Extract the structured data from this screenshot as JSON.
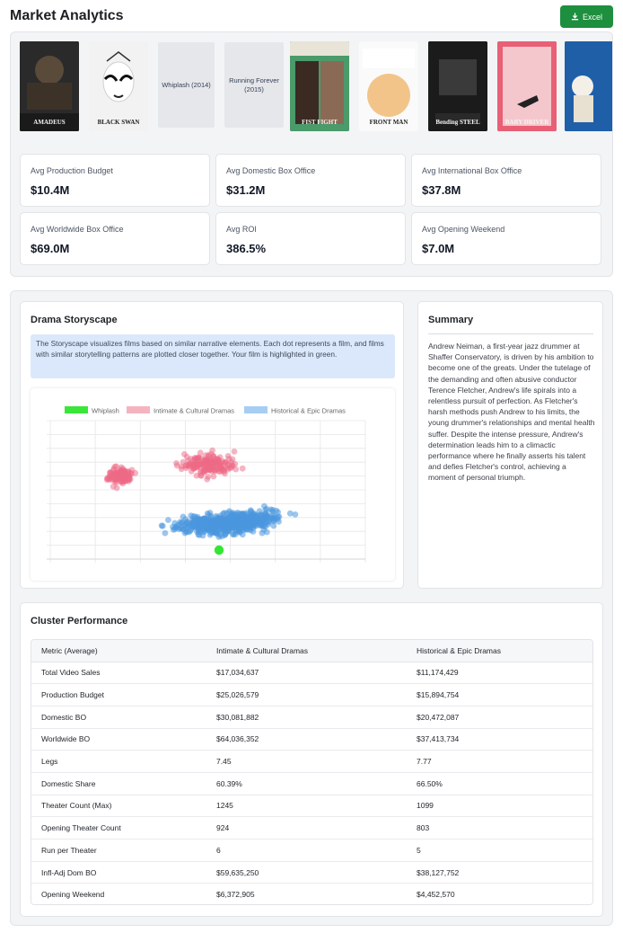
{
  "header": {
    "title": "Market Analytics",
    "excel_label": "Excel"
  },
  "posters": [
    {
      "type": "image",
      "caption": "AMADEUS",
      "name": "poster-amadeus",
      "bg": "#2a2a2a"
    },
    {
      "type": "image",
      "caption": "BLACK SWAN",
      "name": "poster-black-swan",
      "bg": "#efefef"
    },
    {
      "type": "placeholder",
      "title": "Whiplash (2014)"
    },
    {
      "type": "placeholder",
      "title": "Running Forever (2015)"
    },
    {
      "type": "image",
      "caption": "FIST FIGHT",
      "name": "poster-fist-fight",
      "bg": "#4a9a6a"
    },
    {
      "type": "image",
      "caption": "FRONT MAN",
      "name": "poster-front-man",
      "bg": "#f7e27a"
    },
    {
      "type": "image",
      "caption": "Bending STEEL",
      "name": "poster-bending-steel",
      "bg": "#1b1b1b"
    },
    {
      "type": "image",
      "caption": "BABY DRIVER",
      "name": "poster-baby-driver",
      "bg": "#e86075"
    },
    {
      "type": "image",
      "caption": "",
      "name": "poster-partial",
      "bg": "#1f5fa8"
    }
  ],
  "stats": [
    {
      "label": "Avg Production Budget",
      "value": "$10.4M"
    },
    {
      "label": "Avg Domestic Box Office",
      "value": "$31.2M"
    },
    {
      "label": "Avg International Box Office",
      "value": "$37.8M"
    },
    {
      "label": "Avg Worldwide Box Office",
      "value": "$69.0M"
    },
    {
      "label": "Avg ROI",
      "value": "386.5%"
    },
    {
      "label": "Avg Opening Weekend",
      "value": "$7.0M"
    }
  ],
  "storyscape": {
    "title": "Drama Storyscape",
    "description": "The Storyscape visualizes films based on similar narrative elements. Each dot represents a film, and films with similar storytelling patterns are plotted closer together. Your film is highlighted in green."
  },
  "chart_data": {
    "type": "scatter",
    "legend_position": "top",
    "grid": true,
    "series": [
      {
        "name": "Whiplash",
        "color": "#39e639"
      },
      {
        "name": "Intimate & Cultural Dramas",
        "color": "#f5a3b5"
      },
      {
        "name": "Historical & Epic Dramas",
        "color": "#9ec8f2"
      }
    ]
  },
  "summary": {
    "title": "Summary",
    "text": "Andrew Neiman, a first-year jazz drummer at Shaffer Conservatory, is driven by his ambition to become one of the greats. Under the tutelage of the demanding and often abusive conductor Terence Fletcher, Andrew's life spirals into a relentless pursuit of perfection. As Fletcher's harsh methods push Andrew to his limits, the young drummer's relationships and mental health suffer. Despite the intense pressure, Andrew's determination leads him to a climactic performance where he finally asserts his talent and defies Fletcher's control, achieving a moment of personal triumph."
  },
  "cluster": {
    "title": "Cluster Performance",
    "headers": [
      "Metric (Average)",
      "Intimate & Cultural Dramas",
      "Historical & Epic Dramas"
    ],
    "rows": [
      [
        "Total Video Sales",
        "$17,034,637",
        "$11,174,429"
      ],
      [
        "Production Budget",
        "$25,026,579",
        "$15,894,754"
      ],
      [
        "Domestic BO",
        "$30,081,882",
        "$20,472,087"
      ],
      [
        "Worldwide BO",
        "$64,036,352",
        "$37,413,734"
      ],
      [
        "Legs",
        "7.45",
        "7.77"
      ],
      [
        "Domestic Share",
        "60.39%",
        "66.50%"
      ],
      [
        "Theater Count (Max)",
        "1245",
        "1099"
      ],
      [
        "Opening Theater Count",
        "924",
        "803"
      ],
      [
        "Run per Theater",
        "6",
        "5"
      ],
      [
        "Infl-Adj Dom BO",
        "$59,635,250",
        "$38,127,752"
      ],
      [
        "Opening Weekend",
        "$6,372,905",
        "$4,452,570"
      ]
    ]
  }
}
